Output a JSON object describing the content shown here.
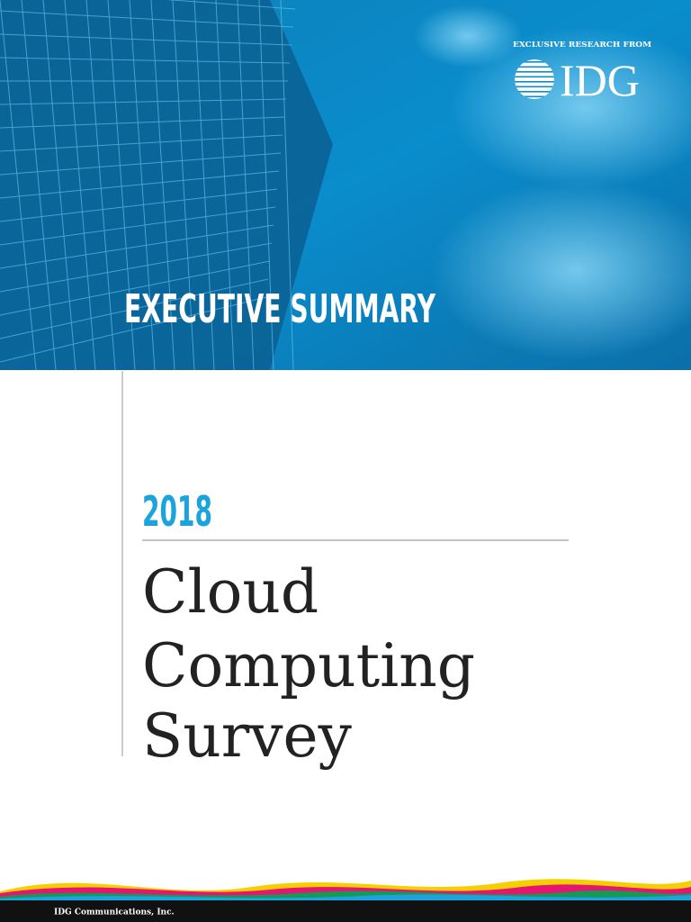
{
  "header": {
    "kicker": "EXCLUSIVE RESEARCH FROM",
    "logo": "IDG",
    "label": "EXECUTIVE SUMMARY"
  },
  "year": "2018",
  "title": [
    "Cloud",
    "Computing",
    "Survey"
  ],
  "footer": {
    "publisher": "IDG Communications, Inc."
  }
}
